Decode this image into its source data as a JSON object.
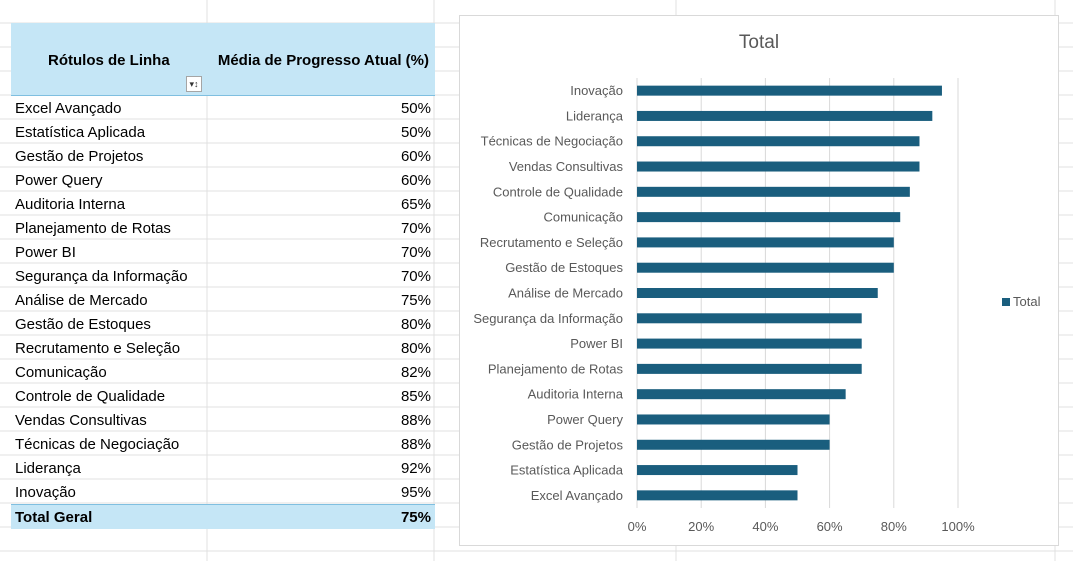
{
  "pivot": {
    "header_rows": "Rótulos de Linha",
    "header_value": "Média de Progresso Atual (%)",
    "filter_icon": "filter-sort-dropdown-icon",
    "rows": [
      {
        "label": "Excel Avançado",
        "value": "50%"
      },
      {
        "label": "Estatística Aplicada",
        "value": "50%"
      },
      {
        "label": "Gestão de Projetos",
        "value": "60%"
      },
      {
        "label": "Power Query",
        "value": "60%"
      },
      {
        "label": "Auditoria Interna",
        "value": "65%"
      },
      {
        "label": "Planejamento de Rotas",
        "value": "70%"
      },
      {
        "label": "Power BI",
        "value": "70%"
      },
      {
        "label": "Segurança da Informação",
        "value": "70%"
      },
      {
        "label": "Análise de Mercado",
        "value": "75%"
      },
      {
        "label": "Gestão de Estoques",
        "value": "80%"
      },
      {
        "label": "Recrutamento e Seleção",
        "value": "80%"
      },
      {
        "label": "Comunicação",
        "value": "82%"
      },
      {
        "label": "Controle de Qualidade",
        "value": "85%"
      },
      {
        "label": "Vendas Consultivas",
        "value": "88%"
      },
      {
        "label": "Técnicas de Negociação",
        "value": "88%"
      },
      {
        "label": "Liderança",
        "value": "92%"
      },
      {
        "label": "Inovação",
        "value": "95%"
      }
    ],
    "total_label": "Total Geral",
    "total_value": "75%",
    "header_color": "#c5e6f6"
  },
  "chart_data": {
    "type": "bar",
    "orientation": "horizontal",
    "title": "Total",
    "categories": [
      "Inovação",
      "Liderança",
      "Técnicas de Negociação",
      "Vendas Consultivas",
      "Controle de Qualidade",
      "Comunicação",
      "Recrutamento e Seleção",
      "Gestão de Estoques",
      "Análise de Mercado",
      "Segurança da Informação",
      "Power BI",
      "Planejamento de Rotas",
      "Auditoria Interna",
      "Power Query",
      "Gestão de Projetos",
      "Estatística Aplicada",
      "Excel Avançado"
    ],
    "series": [
      {
        "name": "Total",
        "values": [
          0.95,
          0.92,
          0.88,
          0.88,
          0.85,
          0.82,
          0.8,
          0.8,
          0.75,
          0.7,
          0.7,
          0.7,
          0.65,
          0.6,
          0.6,
          0.5,
          0.5
        ]
      }
    ],
    "xlim": [
      0,
      1
    ],
    "xticks": [
      "0%",
      "20%",
      "40%",
      "60%",
      "80%",
      "100%"
    ],
    "grid": "vertical",
    "legend": "right",
    "bar_color": "#1a5e7e"
  }
}
